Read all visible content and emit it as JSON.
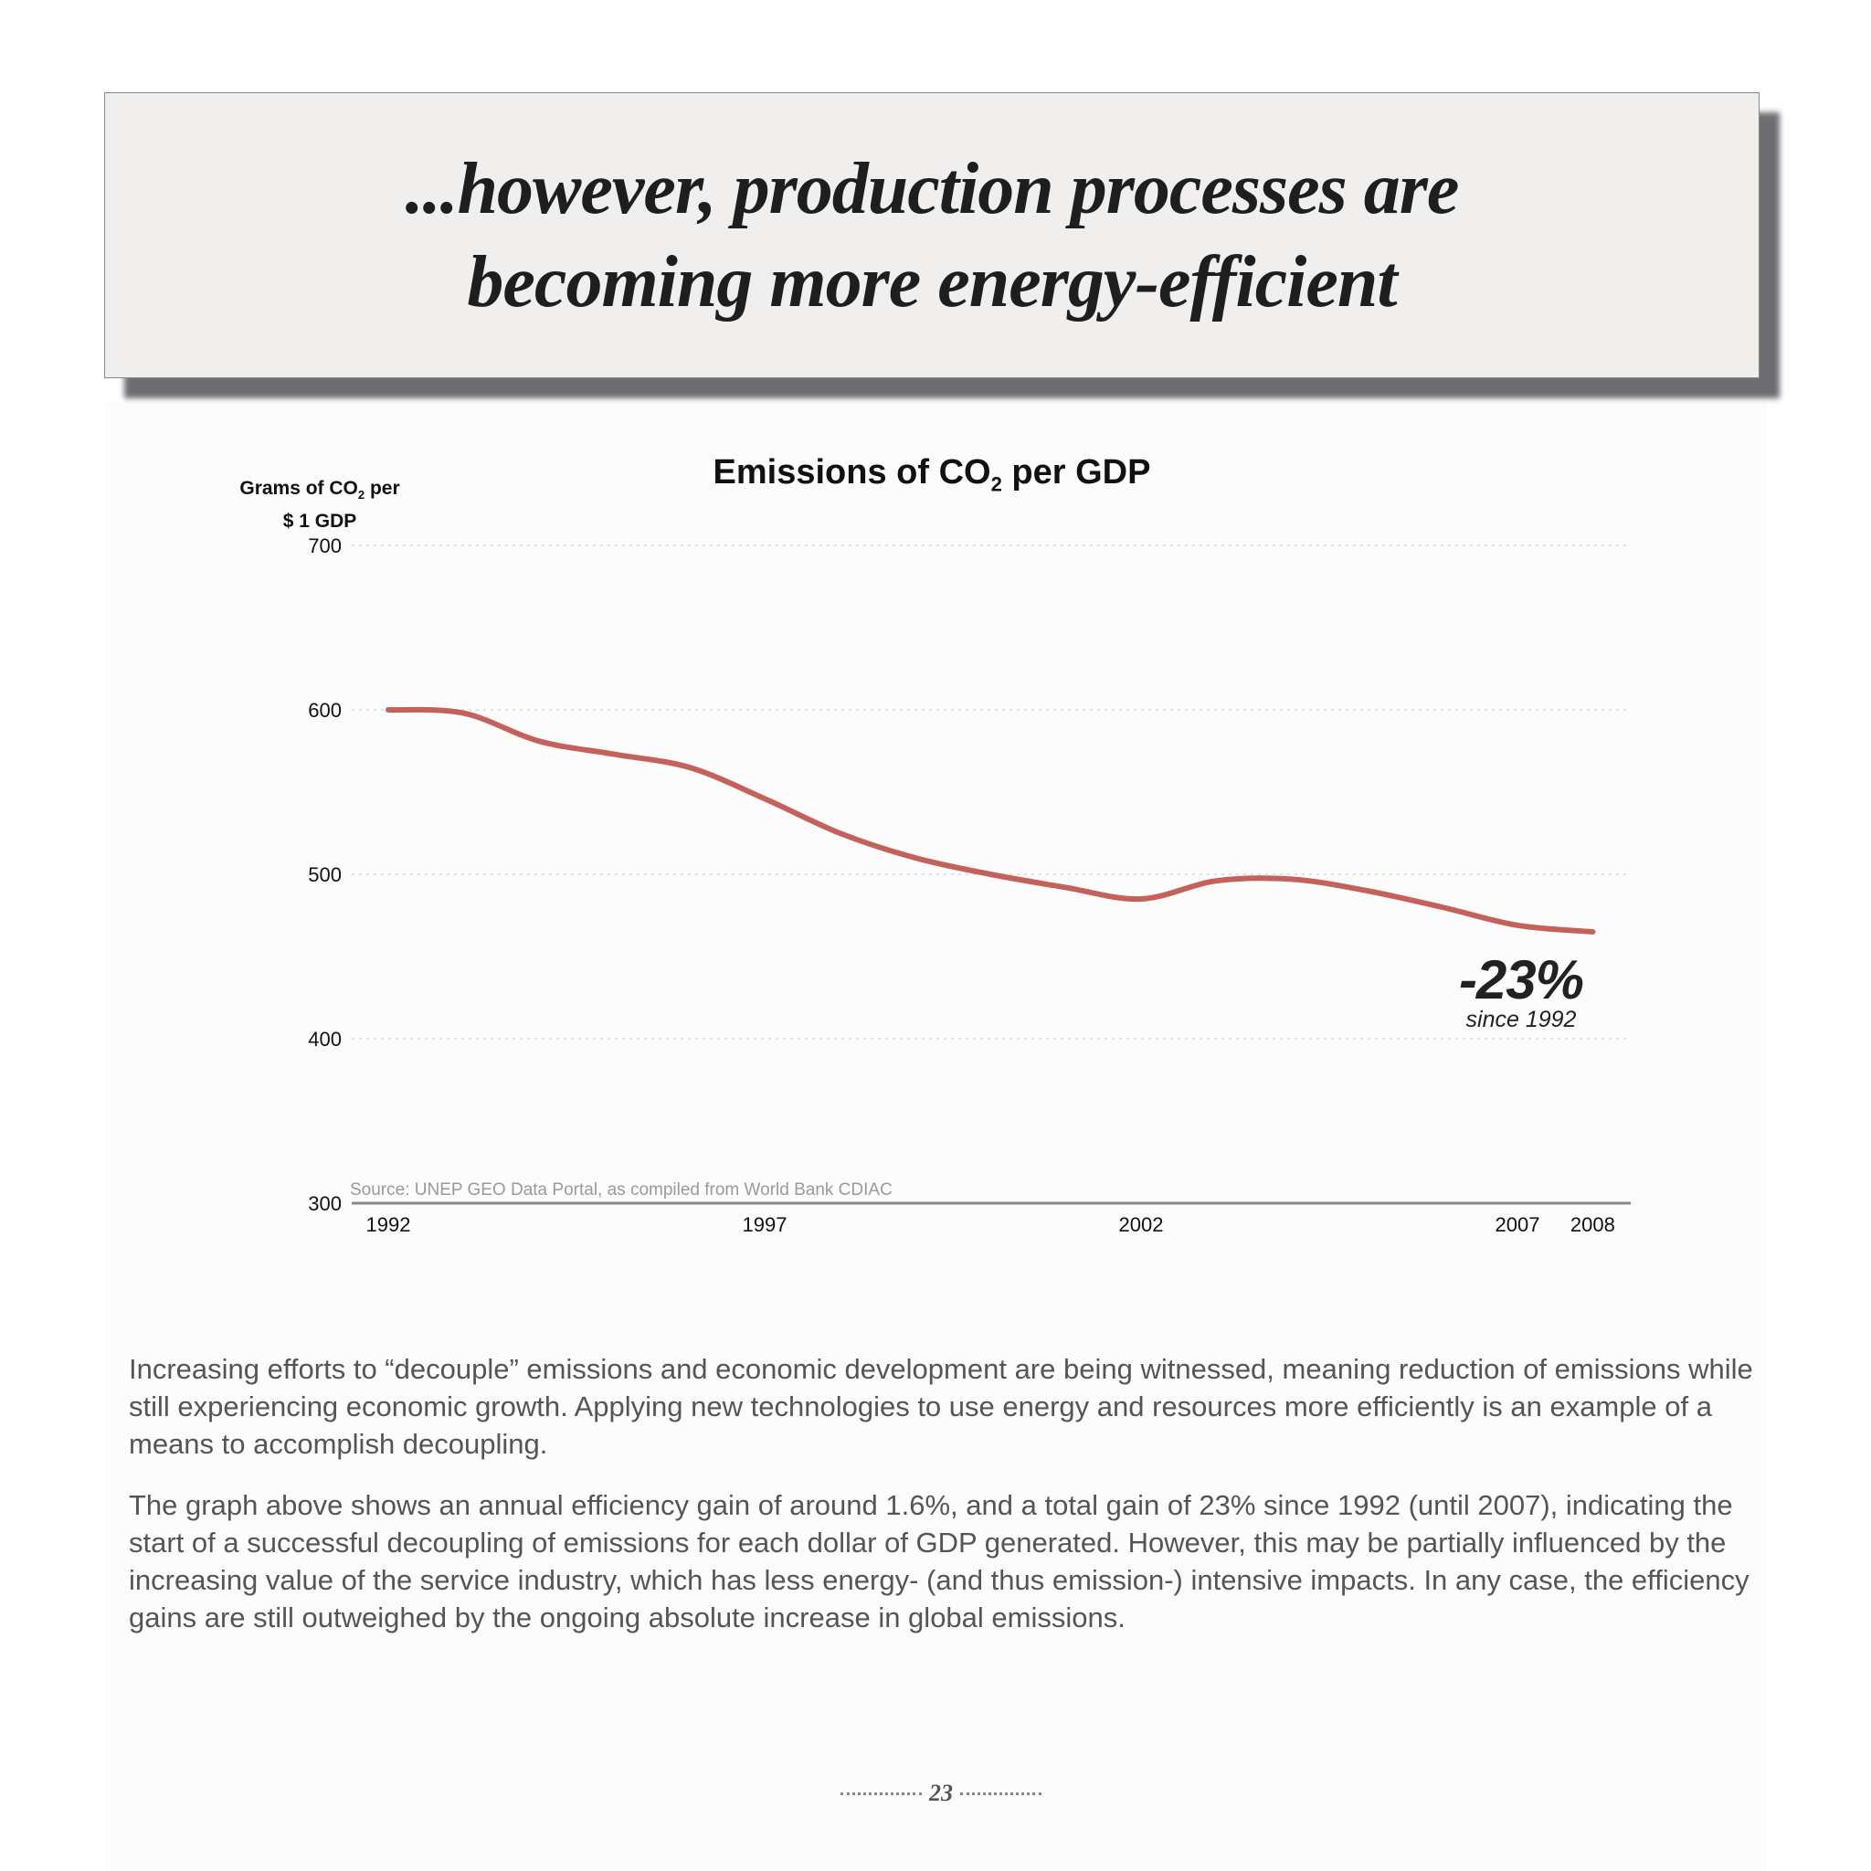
{
  "banner": {
    "line1": "...however, production processes are",
    "line2": "becoming more energy-efficient"
  },
  "chart_data": {
    "type": "line",
    "title_parts": [
      "Emissions of CO",
      "2",
      " per GDP"
    ],
    "ylabel_parts": [
      "Grams of CO",
      "2",
      " per",
      "$ 1 GDP"
    ],
    "xlabel": "",
    "ylim": [
      300,
      700
    ],
    "y_ticks": [
      300,
      400,
      500,
      600,
      700
    ],
    "x_ticks": [
      "1992",
      "1997",
      "2002",
      "2007",
      "2008"
    ],
    "grid": "horizontal dotted",
    "line_color": "#c5615b",
    "series": [
      {
        "x": [
          1992,
          1993,
          1994,
          1995,
          1996,
          1997,
          1998,
          1999,
          2000,
          2001,
          2002,
          2003,
          2004,
          2005,
          2006,
          2007,
          2008
        ],
        "values": [
          600,
          598,
          581,
          573,
          565,
          546,
          525,
          510,
          500,
          492,
          485,
          496,
          497,
          490,
          480,
          469,
          465
        ]
      }
    ],
    "annotation": {
      "value": "-23%",
      "sub": "since 1992"
    },
    "source": "Source: UNEP GEO Data Portal, as compiled from World Bank CDIAC"
  },
  "body": {
    "p1": "Increasing efforts to “decouple” emissions and economic development are being witnessed, meaning reduction of emissions while still experiencing economic growth. Applying new technologies to use energy and resources more efficiently is an example of a means to accomplish decoupling.",
    "p2": "The graph above shows an annual efficiency gain of around 1.6%, and a total gain of 23% since 1992 (until 2007), indicating the start of a successful decoupling of emissions for each dollar of GDP generated. However, this may be partially influenced by the increasing value of the service industry, which has less energy- (and thus emission-) intensive impacts. In any case, the efficiency gains are still outweighed by the ongoing absolute increase in global emissions."
  },
  "page_number": "23"
}
